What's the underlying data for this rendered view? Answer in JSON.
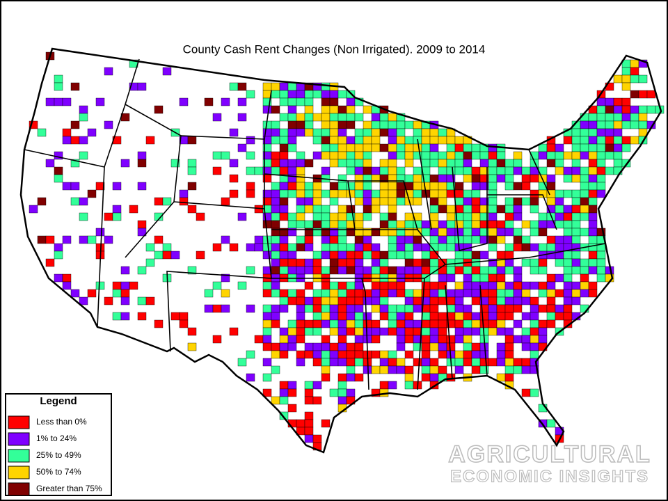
{
  "title": "County Cash Rent Changes (Non Irrigated). 2009 to 2014",
  "legend": {
    "title": "Legend",
    "items": [
      {
        "label": "Less than 0%",
        "color": "#ff0000"
      },
      {
        "label": "1% to 24%",
        "color": "#7f00ff"
      },
      {
        "label": "25% to 49%",
        "color": "#33ff99"
      },
      {
        "label": "50% to 74%",
        "color": "#ffd400"
      },
      {
        "label": "Greater than 75%",
        "color": "#800000"
      }
    ]
  },
  "watermark": {
    "line1": "AGRICULTURAL",
    "line2": "ECONOMIC INSIGHTS"
  }
}
